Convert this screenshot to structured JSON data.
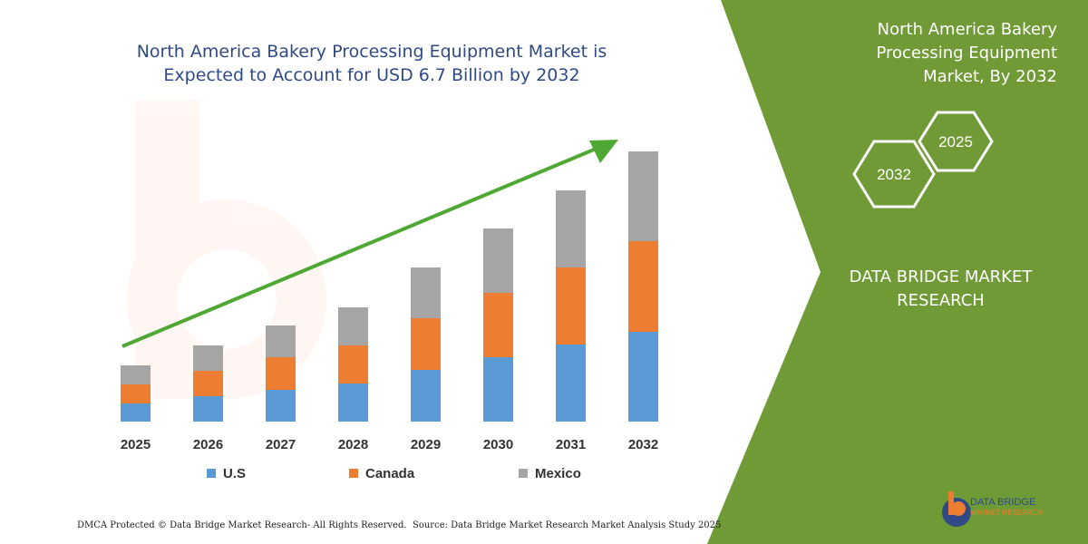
{
  "title": {
    "line1": "North America Bakery Processing Equipment Market is",
    "line2": "Expected to Account for  USD 6.7 Billion by 2032"
  },
  "panel": {
    "title_line1": "North America Bakery",
    "title_line2": "Processing Equipment",
    "title_line3": "Market, By 2032",
    "hex_2032": "2032",
    "hex_2025": "2025",
    "company_line1": "DATA BRIDGE MARKET",
    "company_line2": "RESEARCH",
    "color": "#6f9a35"
  },
  "footer": {
    "left": "DMCA Protected © Data Bridge Market Research-  All Rights Reserved.",
    "right": "Source: Data Bridge Market Research  Market Analysis Study 2025"
  },
  "logo": {
    "line1": "DATA BRIDGE",
    "line2": "MARKET RESEARCH"
  },
  "chart_data": {
    "type": "bar",
    "stacked": true,
    "categories": [
      "2025",
      "2026",
      "2027",
      "2028",
      "2029",
      "2030",
      "2031",
      "2032"
    ],
    "series": [
      {
        "name": "U.S",
        "color": "#5b9bd5",
        "values": [
          20,
          28,
          35,
          42,
          57,
          71,
          85,
          99
        ]
      },
      {
        "name": "Canada",
        "color": "#ed7d31",
        "values": [
          21,
          28,
          36,
          42,
          57,
          71,
          85,
          100
        ]
      },
      {
        "name": "Mexico",
        "color": "#a5a5a5",
        "values": [
          21,
          28,
          35,
          42,
          56,
          71,
          85,
          99
        ]
      }
    ],
    "ylim": [
      0,
      300
    ],
    "grid": false,
    "legend": "bottom",
    "trend_arrow": true
  }
}
